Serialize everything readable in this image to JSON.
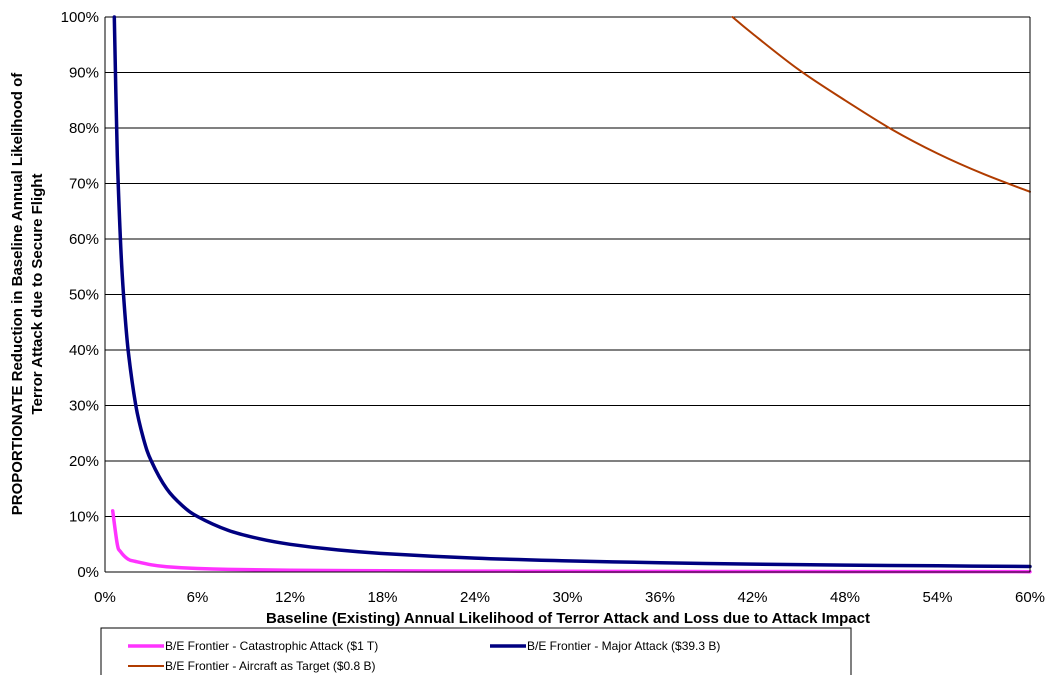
{
  "chart_data": {
    "type": "line",
    "title": "",
    "xlabel": "Baseline (Existing) Annual Likelihood of Terror Attack and Loss due to Attack Impact",
    "ylabel_line1": "PROPORTIONATE Reduction in Baseline Annual Likelihood of",
    "ylabel_line2": "Terror Attack due to Secure Flight",
    "xlim": [
      0,
      60
    ],
    "ylim": [
      0,
      100
    ],
    "x_unit": "%",
    "y_unit": "%",
    "x_ticks": [
      "0%",
      "6%",
      "12%",
      "18%",
      "24%",
      "30%",
      "36%",
      "42%",
      "48%",
      "54%",
      "60%"
    ],
    "y_ticks": [
      "0%",
      "10%",
      "20%",
      "30%",
      "40%",
      "50%",
      "60%",
      "70%",
      "80%",
      "90%",
      "100%"
    ],
    "grid": "horizontal",
    "legend_position": "bottom",
    "series": [
      {
        "name": "B/E Frontier - Catastrophic Attack ($1 T)",
        "color": "#ff33ff",
        "x": [
          0.5,
          0.8,
          1,
          1.5,
          2,
          3,
          4,
          6,
          8,
          12,
          18,
          24,
          30,
          36,
          42,
          48,
          54,
          60
        ],
        "y": [
          11,
          5,
          3.7,
          2.3,
          1.9,
          1.3,
          0.95,
          0.63,
          0.47,
          0.32,
          0.21,
          0.16,
          0.13,
          0.11,
          0.09,
          0.08,
          0.07,
          0.06
        ]
      },
      {
        "name": "B/E Frontier - Major Attack ($39.3 B)",
        "color": "#000080",
        "x": [
          0.6,
          0.8,
          1,
          1.2,
          1.5,
          2,
          2.5,
          3,
          4,
          5,
          6,
          8,
          10,
          12,
          15,
          18,
          24,
          30,
          36,
          42,
          48,
          54,
          60
        ],
        "y": [
          100,
          75,
          60,
          50,
          40,
          30,
          24,
          20,
          15,
          12,
          10,
          7.5,
          6,
          5,
          4,
          3.33,
          2.5,
          2,
          1.67,
          1.43,
          1.25,
          1.11,
          1.0
        ]
      },
      {
        "name": "B/E Frontier - Aircraft as Target ($0.8 B)",
        "color": "#b03c00",
        "x": [
          40.7,
          42,
          45,
          48,
          51,
          54,
          57,
          60
        ],
        "y": [
          100,
          97,
          90.5,
          85,
          79.8,
          75.4,
          71.7,
          68.5
        ]
      }
    ]
  }
}
